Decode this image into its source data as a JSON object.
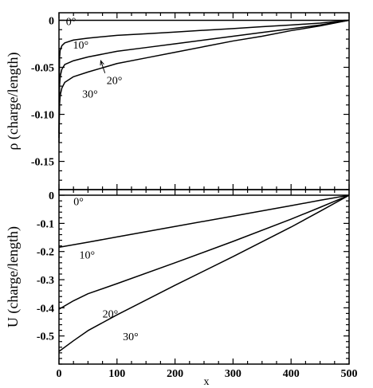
{
  "chart_data": [
    {
      "type": "line",
      "ylabel": "ρ (charge/length)",
      "xlabel": "",
      "xlim": [
        0,
        500
      ],
      "ylim": [
        -0.18,
        0.008
      ],
      "yticks": [
        0,
        -0.05,
        -0.1,
        -0.15
      ],
      "ytick_labels": [
        "0",
        "-0.05",
        "-0.10",
        "-0.15"
      ],
      "grid": false,
      "series": [
        {
          "name": "0°",
          "x": [
            0,
            500
          ],
          "y": [
            0,
            0
          ]
        },
        {
          "name": "10°",
          "x": [
            0,
            1,
            2,
            5,
            10,
            25,
            50,
            100,
            150,
            200,
            250,
            300,
            350,
            400,
            450,
            500
          ],
          "y": [
            -0.12,
            -0.04,
            -0.032,
            -0.027,
            -0.024,
            -0.021,
            -0.019,
            -0.016,
            -0.0143,
            -0.0125,
            -0.0106,
            -0.0088,
            -0.0068,
            -0.005,
            -0.003,
            0
          ]
        },
        {
          "name": "20°",
          "x": [
            0,
            1,
            2,
            5,
            10,
            25,
            50,
            100,
            150,
            200,
            250,
            300,
            350,
            400,
            450,
            500
          ],
          "y": [
            -0.125,
            -0.07,
            -0.06,
            -0.052,
            -0.047,
            -0.043,
            -0.039,
            -0.033,
            -0.029,
            -0.025,
            -0.021,
            -0.017,
            -0.013,
            -0.009,
            -0.005,
            0
          ]
        },
        {
          "name": "30°",
          "x": [
            0,
            1,
            2,
            5,
            10,
            25,
            50,
            100,
            150,
            200,
            250,
            300,
            350,
            400,
            450,
            500
          ],
          "y": [
            -0.13,
            -0.09,
            -0.08,
            -0.072,
            -0.066,
            -0.06,
            -0.055,
            -0.046,
            -0.04,
            -0.034,
            -0.028,
            -0.022,
            -0.017,
            -0.011,
            -0.006,
            0
          ]
        }
      ],
      "annotations": [
        {
          "text": "0°",
          "x": 12,
          "y": -0.005
        },
        {
          "text": "10°",
          "x": 24,
          "y": -0.03
        },
        {
          "text": "20°",
          "x": 82,
          "y": -0.068,
          "arrow_to": {
            "x": 72,
            "y": -0.043
          }
        },
        {
          "text": "30°",
          "x": 40,
          "y": -0.082
        }
      ]
    },
    {
      "type": "line",
      "ylabel": "U (charge/length)",
      "xlabel": "x",
      "xlim": [
        0,
        500
      ],
      "ylim": [
        -0.6,
        0.02
      ],
      "xticks": [
        0,
        100,
        200,
        300,
        400,
        500
      ],
      "xtick_labels": [
        "0",
        "100",
        "200",
        "300",
        "400",
        "500"
      ],
      "yticks": [
        0,
        -0.1,
        -0.2,
        -0.3,
        -0.4,
        -0.5
      ],
      "ytick_labels": [
        "0",
        "-0.1",
        "-0.2",
        "-0.3",
        "-0.4",
        "-0.5"
      ],
      "grid": false,
      "series": [
        {
          "name": "0°",
          "x": [
            0,
            500
          ],
          "y": [
            0,
            0
          ]
        },
        {
          "name": "10°",
          "x": [
            0,
            50,
            100,
            200,
            300,
            400,
            450,
            500
          ],
          "y": [
            -0.185,
            -0.167,
            -0.148,
            -0.111,
            -0.074,
            -0.037,
            -0.018,
            0
          ]
        },
        {
          "name": "20°",
          "x": [
            0,
            25,
            50,
            100,
            200,
            300,
            400,
            450,
            500
          ],
          "y": [
            -0.405,
            -0.375,
            -0.35,
            -0.314,
            -0.24,
            -0.164,
            -0.085,
            -0.043,
            0
          ]
        },
        {
          "name": "30°",
          "x": [
            0,
            25,
            50,
            100,
            200,
            300,
            400,
            450,
            500
          ],
          "y": [
            -0.555,
            -0.517,
            -0.481,
            -0.425,
            -0.32,
            -0.218,
            -0.113,
            -0.057,
            0
          ]
        }
      ],
      "annotations": [
        {
          "text": "0°",
          "x": 25,
          "y": -0.035
        },
        {
          "text": "10°",
          "x": 35,
          "y": -0.225
        },
        {
          "text": "20°",
          "x": 75,
          "y": -0.435
        },
        {
          "text": "30°",
          "x": 110,
          "y": -0.515
        }
      ]
    }
  ]
}
